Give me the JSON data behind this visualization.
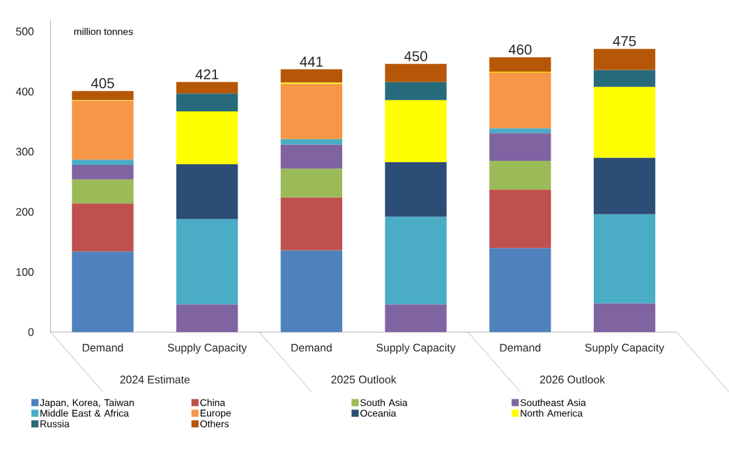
{
  "chart_data": {
    "type": "bar",
    "stacked": true,
    "ylabel": "million tonnes",
    "categories": [
      "Demand",
      "Supply Capacity",
      "Demand",
      "Supply Capacity",
      "Demand",
      "Supply Capacity"
    ],
    "annotations": [
      "2024 Estimate",
      "2025 Outlook",
      "2026 Outlook"
    ],
    "ylim": [
      0,
      520
    ],
    "yticks": [
      0,
      100,
      200,
      300,
      400,
      500
    ],
    "grid": false,
    "legend": "bottom",
    "totals": [
      "405",
      "421",
      "441",
      "450",
      "460",
      "475"
    ],
    "series": [
      {
        "name": "Japan, Korea, Taiwan",
        "color": "#4f81bd",
        "values": [
          134,
          null,
          136,
          null,
          140,
          null
        ]
      },
      {
        "name": "China",
        "color": "#c0504d",
        "values": [
          80,
          null,
          88,
          null,
          97,
          null
        ]
      },
      {
        "name": "South Asia",
        "color": "#9bbb59",
        "values": [
          40,
          null,
          48,
          null,
          48,
          null
        ]
      },
      {
        "name": "Southeast Asia",
        "color": "#8064a2",
        "values": [
          24,
          46,
          40,
          46,
          46,
          48
        ]
      },
      {
        "name": "Middle East & Africa",
        "color": "#4bacc6",
        "values": [
          9,
          142,
          9,
          146,
          8,
          148
        ]
      },
      {
        "name": "Europe",
        "color": "#f79646",
        "values": [
          98,
          null,
          92,
          null,
          93,
          null
        ]
      },
      {
        "name": "Oceania",
        "color": "#2c4d75",
        "values": [
          null,
          91,
          null,
          91,
          null,
          94
        ]
      },
      {
        "name": "North America",
        "color": "#ffff00",
        "values": [
          1,
          88,
          2,
          103,
          1,
          118
        ]
      },
      {
        "name": "Russia",
        "color": "#276a7c",
        "values": [
          null,
          30,
          null,
          30,
          null,
          28
        ]
      },
      {
        "name": "Others",
        "color": "#b65708",
        "values": [
          15,
          19,
          22,
          30,
          24,
          35
        ]
      }
    ]
  }
}
